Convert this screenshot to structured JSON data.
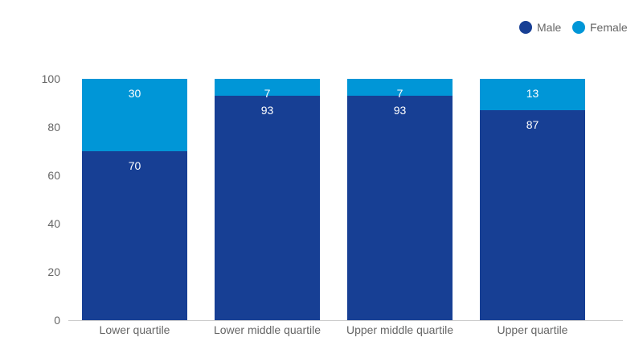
{
  "chart_data": {
    "type": "bar",
    "stacked": true,
    "categories": [
      "Lower quartile",
      "Lower middle quartile",
      "Upper middle quartile",
      "Upper quartile"
    ],
    "series": [
      {
        "name": "Male",
        "color": "#173f94",
        "values": [
          70,
          93,
          93,
          87
        ]
      },
      {
        "name": "Female",
        "color": "#0096d7",
        "values": [
          30,
          7,
          7,
          13
        ]
      }
    ],
    "ylim": [
      0,
      100
    ],
    "yticks": [
      0,
      20,
      40,
      60,
      80,
      100
    ],
    "grid": false,
    "legend_position": "top-right"
  }
}
